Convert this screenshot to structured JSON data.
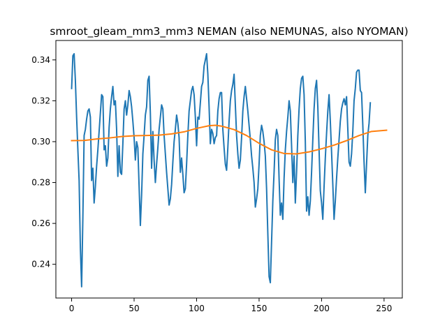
{
  "chart_data": {
    "type": "line",
    "title": "smroot_gleam_mm3_mm3 NEMAN (also NEMUNAS, also NYOMAN)",
    "xlabel": "",
    "ylabel": "",
    "xlim": [
      -12.6,
      264.6
    ],
    "ylim": [
      0.2235,
      0.3495
    ],
    "xticks": [
      0,
      50,
      100,
      150,
      200,
      250
    ],
    "xtick_labels": [
      "0",
      "50",
      "100",
      "150",
      "200",
      "250"
    ],
    "yticks": [
      0.24,
      0.26,
      0.28,
      0.3,
      0.32,
      0.34
    ],
    "ytick_labels": [
      "0.24",
      "0.26",
      "0.28",
      "0.30",
      "0.32",
      "0.34"
    ],
    "grid": false,
    "legend": "none",
    "series": [
      {
        "color": "#1f77b4",
        "points": [
          [
            0,
            0.326
          ],
          [
            1,
            0.342
          ],
          [
            2,
            0.343
          ],
          [
            3,
            0.33
          ],
          [
            4,
            0.312
          ],
          [
            5,
            0.296
          ],
          [
            6,
            0.281
          ],
          [
            7,
            0.248
          ],
          [
            8,
            0.229
          ],
          [
            9,
            0.263
          ],
          [
            10,
            0.303
          ],
          [
            11,
            0.306
          ],
          [
            12,
            0.311
          ],
          [
            13,
            0.315
          ],
          [
            14,
            0.316
          ],
          [
            15,
            0.312
          ],
          [
            16,
            0.281
          ],
          [
            17,
            0.287
          ],
          [
            18,
            0.27
          ],
          [
            19,
            0.278
          ],
          [
            20,
            0.288
          ],
          [
            21,
            0.296
          ],
          [
            22,
            0.305
          ],
          [
            23,
            0.314
          ],
          [
            24,
            0.323
          ],
          [
            25,
            0.322
          ],
          [
            26,
            0.296
          ],
          [
            27,
            0.298
          ],
          [
            28,
            0.288
          ],
          [
            29,
            0.292
          ],
          [
            30,
            0.307
          ],
          [
            31,
            0.316
          ],
          [
            32,
            0.322
          ],
          [
            33,
            0.327
          ],
          [
            34,
            0.318
          ],
          [
            35,
            0.32
          ],
          [
            36,
            0.306
          ],
          [
            37,
            0.283
          ],
          [
            38,
            0.298
          ],
          [
            39,
            0.285
          ],
          [
            40,
            0.284
          ],
          [
            41,
            0.299
          ],
          [
            42,
            0.316
          ],
          [
            43,
            0.32
          ],
          [
            44,
            0.313
          ],
          [
            45,
            0.318
          ],
          [
            46,
            0.325
          ],
          [
            47,
            0.322
          ],
          [
            48,
            0.317
          ],
          [
            49,
            0.31
          ],
          [
            50,
            0.302
          ],
          [
            51,
            0.291
          ],
          [
            52,
            0.3
          ],
          [
            53,
            0.297
          ],
          [
            54,
            0.278
          ],
          [
            55,
            0.259
          ],
          [
            56,
            0.274
          ],
          [
            57,
            0.294
          ],
          [
            58,
            0.303
          ],
          [
            59,
            0.313
          ],
          [
            60,
            0.317
          ],
          [
            61,
            0.33
          ],
          [
            62,
            0.332
          ],
          [
            63,
            0.314
          ],
          [
            64,
            0.287
          ],
          [
            65,
            0.305
          ],
          [
            66,
            0.291
          ],
          [
            67,
            0.28
          ],
          [
            68,
            0.289
          ],
          [
            69,
            0.297
          ],
          [
            70,
            0.306
          ],
          [
            71,
            0.312
          ],
          [
            72,
            0.318
          ],
          [
            73,
            0.316
          ],
          [
            74,
            0.303
          ],
          [
            75,
            0.294
          ],
          [
            76,
            0.285
          ],
          [
            77,
            0.277
          ],
          [
            78,
            0.269
          ],
          [
            79,
            0.272
          ],
          [
            80,
            0.279
          ],
          [
            81,
            0.29
          ],
          [
            82,
            0.3
          ],
          [
            83,
            0.306
          ],
          [
            84,
            0.313
          ],
          [
            85,
            0.309
          ],
          [
            86,
            0.302
          ],
          [
            87,
            0.285
          ],
          [
            88,
            0.292
          ],
          [
            89,
            0.284
          ],
          [
            90,
            0.275
          ],
          [
            91,
            0.277
          ],
          [
            92,
            0.289
          ],
          [
            93,
            0.303
          ],
          [
            94,
            0.315
          ],
          [
            95,
            0.32
          ],
          [
            96,
            0.325
          ],
          [
            97,
            0.327
          ],
          [
            98,
            0.323
          ],
          [
            99,
            0.312
          ],
          [
            100,
            0.298
          ],
          [
            101,
            0.312
          ],
          [
            102,
            0.311
          ],
          [
            103,
            0.319
          ],
          [
            104,
            0.327
          ],
          [
            105,
            0.329
          ],
          [
            106,
            0.337
          ],
          [
            107,
            0.34
          ],
          [
            108,
            0.343
          ],
          [
            109,
            0.333
          ],
          [
            110,
            0.317
          ],
          [
            111,
            0.299
          ],
          [
            112,
            0.306
          ],
          [
            113,
            0.304
          ],
          [
            114,
            0.299
          ],
          [
            115,
            0.302
          ],
          [
            116,
            0.303
          ],
          [
            117,
            0.315
          ],
          [
            118,
            0.321
          ],
          [
            119,
            0.324
          ],
          [
            120,
            0.324
          ],
          [
            121,
            0.306
          ],
          [
            122,
            0.297
          ],
          [
            123,
            0.289
          ],
          [
            124,
            0.286
          ],
          [
            125,
            0.297
          ],
          [
            126,
            0.31
          ],
          [
            127,
            0.32
          ],
          [
            128,
            0.325
          ],
          [
            129,
            0.328
          ],
          [
            130,
            0.333
          ],
          [
            131,
            0.318
          ],
          [
            132,
            0.303
          ],
          [
            133,
            0.294
          ],
          [
            134,
            0.287
          ],
          [
            135,
            0.291
          ],
          [
            136,
            0.302
          ],
          [
            137,
            0.315
          ],
          [
            138,
            0.322
          ],
          [
            139,
            0.327
          ],
          [
            140,
            0.321
          ],
          [
            141,
            0.315
          ],
          [
            142,
            0.308
          ],
          [
            143,
            0.301
          ],
          [
            144,
            0.293
          ],
          [
            145,
            0.287
          ],
          [
            146,
            0.28
          ],
          [
            147,
            0.268
          ],
          [
            148,
            0.272
          ],
          [
            149,
            0.277
          ],
          [
            150,
            0.289
          ],
          [
            151,
            0.303
          ],
          [
            152,
            0.308
          ],
          [
            153,
            0.305
          ],
          [
            154,
            0.3
          ],
          [
            155,
            0.293
          ],
          [
            156,
            0.277
          ],
          [
            157,
            0.255
          ],
          [
            158,
            0.234
          ],
          [
            159,
            0.231
          ],
          [
            160,
            0.251
          ],
          [
            161,
            0.271
          ],
          [
            162,
            0.285
          ],
          [
            163,
            0.301
          ],
          [
            164,
            0.306
          ],
          [
            165,
            0.303
          ],
          [
            166,
            0.282
          ],
          [
            167,
            0.264
          ],
          [
            168,
            0.27
          ],
          [
            169,
            0.262
          ],
          [
            170,
            0.282
          ],
          [
            171,
            0.296
          ],
          [
            172,
            0.305
          ],
          [
            173,
            0.312
          ],
          [
            174,
            0.32
          ],
          [
            175,
            0.315
          ],
          [
            176,
            0.298
          ],
          [
            177,
            0.28
          ],
          [
            178,
            0.293
          ],
          [
            179,
            0.27
          ],
          [
            180,
            0.285
          ],
          [
            181,
            0.303
          ],
          [
            182,
            0.316
          ],
          [
            183,
            0.326
          ],
          [
            184,
            0.331
          ],
          [
            185,
            0.332
          ],
          [
            186,
            0.323
          ],
          [
            187,
            0.3
          ],
          [
            188,
            0.266
          ],
          [
            189,
            0.273
          ],
          [
            190,
            0.264
          ],
          [
            191,
            0.271
          ],
          [
            192,
            0.285
          ],
          [
            193,
            0.301
          ],
          [
            194,
            0.316
          ],
          [
            195,
            0.326
          ],
          [
            196,
            0.33
          ],
          [
            197,
            0.317
          ],
          [
            198,
            0.296
          ],
          [
            199,
            0.276
          ],
          [
            200,
            0.27
          ],
          [
            201,
            0.262
          ],
          [
            202,
            0.278
          ],
          [
            203,
            0.292
          ],
          [
            204,
            0.304
          ],
          [
            205,
            0.315
          ],
          [
            206,
            0.323
          ],
          [
            207,
            0.31
          ],
          [
            208,
            0.295
          ],
          [
            209,
            0.279
          ],
          [
            210,
            0.262
          ],
          [
            211,
            0.271
          ],
          [
            212,
            0.282
          ],
          [
            213,
            0.292
          ],
          [
            214,
            0.301
          ],
          [
            215,
            0.31
          ],
          [
            216,
            0.316
          ],
          [
            217,
            0.319
          ],
          [
            218,
            0.321
          ],
          [
            219,
            0.318
          ],
          [
            220,
            0.322
          ],
          [
            221,
            0.306
          ],
          [
            222,
            0.29
          ],
          [
            223,
            0.288
          ],
          [
            224,
            0.294
          ],
          [
            225,
            0.305
          ],
          [
            226,
            0.32
          ],
          [
            227,
            0.326
          ],
          [
            228,
            0.334
          ],
          [
            229,
            0.335
          ],
          [
            230,
            0.335
          ],
          [
            231,
            0.325
          ],
          [
            232,
            0.324
          ],
          [
            233,
            0.308
          ],
          [
            234,
            0.29
          ],
          [
            235,
            0.275
          ],
          [
            236,
            0.289
          ],
          [
            237,
            0.303
          ],
          [
            238,
            0.309
          ],
          [
            239,
            0.319
          ]
        ]
      },
      {
        "color": "#ff7f0e",
        "points": [
          [
            0,
            0.3005
          ],
          [
            10,
            0.3006
          ],
          [
            20,
            0.3013
          ],
          [
            30,
            0.3018
          ],
          [
            40,
            0.3025
          ],
          [
            50,
            0.3029
          ],
          [
            60,
            0.303
          ],
          [
            70,
            0.3032
          ],
          [
            80,
            0.3038
          ],
          [
            90,
            0.3048
          ],
          [
            100,
            0.3065
          ],
          [
            110,
            0.3078
          ],
          [
            115,
            0.308
          ],
          [
            120,
            0.3076
          ],
          [
            130,
            0.3059
          ],
          [
            140,
            0.303
          ],
          [
            150,
            0.2992
          ],
          [
            160,
            0.296
          ],
          [
            170,
            0.2942
          ],
          [
            180,
            0.294
          ],
          [
            190,
            0.295
          ],
          [
            200,
            0.2965
          ],
          [
            210,
            0.2983
          ],
          [
            220,
            0.3005
          ],
          [
            230,
            0.303
          ],
          [
            240,
            0.305
          ],
          [
            250,
            0.3055
          ],
          [
            252,
            0.3056
          ]
        ]
      }
    ]
  }
}
